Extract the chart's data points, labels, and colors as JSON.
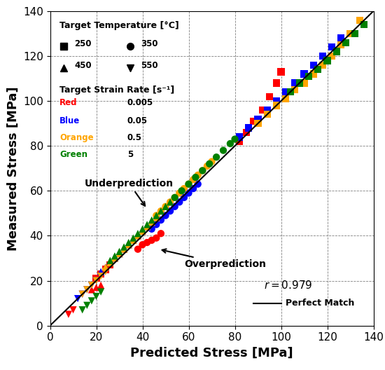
{
  "xlabel": "Predicted Stress [MPa]",
  "ylabel": "Measured Stress [MPa]",
  "xlim": [
    0,
    140
  ],
  "ylim": [
    0,
    140
  ],
  "xticks": [
    0,
    20,
    40,
    60,
    80,
    100,
    120,
    140
  ],
  "yticks": [
    0,
    20,
    40,
    60,
    80,
    100,
    120,
    140
  ],
  "colors": {
    "red": "#FF0000",
    "blue": "#0000FF",
    "orange": "#FFA500",
    "green": "#008000"
  },
  "legend_temp_title": "Target Temperature [°C]",
  "legend_rate_title": "Target Strain Rate [s⁻¹]",
  "data": {
    "red_square": {
      "predicted": [
        20,
        22,
        24,
        26,
        82,
        85,
        88,
        92,
        95,
        98,
        100
      ],
      "measured": [
        21,
        23,
        25,
        27,
        82,
        86,
        91,
        96,
        102,
        108,
        113
      ]
    },
    "red_circle": {
      "predicted": [
        38,
        40,
        42,
        44,
        46,
        48
      ],
      "measured": [
        34,
        36,
        37,
        38,
        39,
        41
      ]
    },
    "red_triangle_up": {
      "predicted": [
        18,
        20,
        22
      ],
      "measured": [
        16,
        17,
        18
      ]
    },
    "red_triangle_down": {
      "predicted": [
        8,
        10
      ],
      "measured": [
        5,
        7
      ]
    },
    "blue_square": {
      "predicted": [
        82,
        86,
        90,
        94,
        98,
        102,
        106,
        110,
        114,
        118,
        122,
        126
      ],
      "measured": [
        84,
        88,
        92,
        96,
        100,
        104,
        108,
        112,
        116,
        120,
        124,
        128
      ]
    },
    "blue_circle": {
      "predicted": [
        44,
        46,
        48,
        50,
        52,
        54,
        56,
        58,
        60,
        62,
        64
      ],
      "measured": [
        43,
        45,
        47,
        49,
        51,
        53,
        55,
        57,
        59,
        61,
        63
      ]
    },
    "blue_triangle_up": {
      "predicted": [
        22,
        24,
        26,
        28,
        30,
        32,
        34,
        36,
        38,
        40,
        42
      ],
      "measured": [
        24,
        26,
        28,
        30,
        32,
        34,
        36,
        38,
        40,
        42,
        44
      ]
    },
    "blue_triangle_down": {
      "predicted": [
        12,
        14,
        16,
        18,
        20
      ],
      "measured": [
        12,
        14,
        16,
        18,
        20
      ]
    },
    "orange_square": {
      "predicted": [
        90,
        94,
        98,
        102,
        106,
        110,
        114,
        118,
        122,
        126,
        130,
        134
      ],
      "measured": [
        90,
        94,
        98,
        101,
        105,
        108,
        112,
        116,
        120,
        125,
        130,
        136
      ]
    },
    "orange_circle": {
      "predicted": [
        46,
        48,
        50,
        52,
        54,
        56,
        58,
        60,
        62,
        64,
        66,
        68,
        70
      ],
      "measured": [
        49,
        51,
        53,
        55,
        57,
        59,
        61,
        63,
        65,
        67,
        69,
        71,
        73
      ]
    },
    "orange_triangle_up": {
      "predicted": [
        24,
        26,
        28,
        30,
        32,
        34,
        36,
        38,
        40,
        42,
        44,
        46
      ],
      "measured": [
        26,
        28,
        30,
        32,
        34,
        36,
        38,
        40,
        42,
        44,
        46,
        48
      ]
    },
    "orange_triangle_down": {
      "predicted": [
        14,
        16,
        18,
        20,
        22,
        24
      ],
      "measured": [
        14,
        16,
        18,
        20,
        22,
        24
      ]
    },
    "green_square": {
      "predicted": [
        104,
        108,
        112,
        116,
        120,
        124,
        128,
        132,
        136
      ],
      "measured": [
        104,
        108,
        111,
        114,
        118,
        122,
        126,
        130,
        134
      ]
    },
    "green_circle": {
      "predicted": [
        54,
        57,
        60,
        63,
        66,
        69,
        72,
        75,
        78,
        80
      ],
      "measured": [
        57,
        60,
        63,
        66,
        69,
        72,
        75,
        78,
        81,
        83
      ]
    },
    "green_triangle_up": {
      "predicted": [
        26,
        28,
        30,
        32,
        34,
        36,
        38,
        40,
        42,
        44,
        46,
        48,
        50,
        52
      ],
      "measured": [
        29,
        31,
        33,
        35,
        37,
        39,
        41,
        43,
        45,
        47,
        49,
        51,
        53,
        55
      ]
    },
    "green_triangle_down": {
      "predicted": [
        14,
        16,
        18,
        20,
        22
      ],
      "measured": [
        7,
        9,
        11,
        13,
        15
      ]
    }
  }
}
